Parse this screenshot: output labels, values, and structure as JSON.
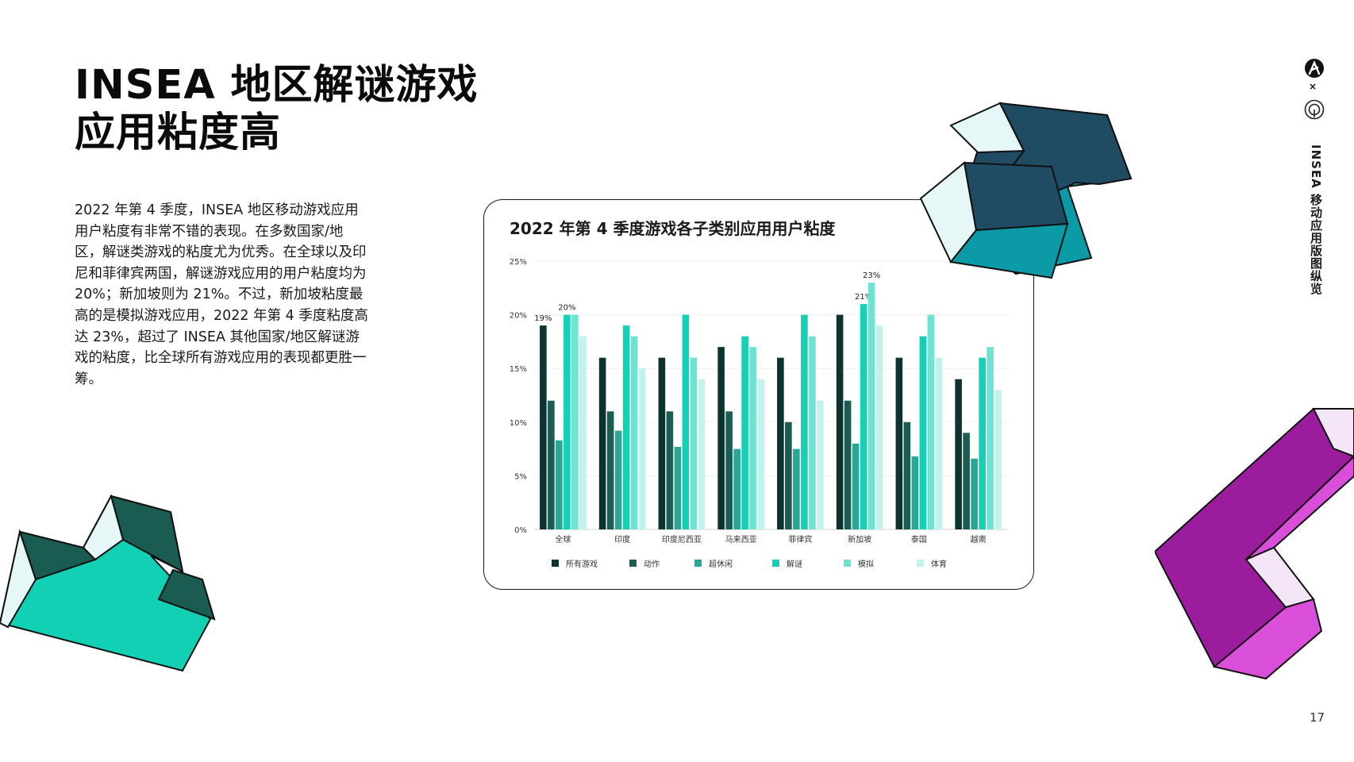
{
  "page": {
    "title_line1": "INSEA 地区解谜游戏",
    "title_line2": "应用粘度高",
    "body": "2022 年第 4 季度，INSEA 地区移动游戏应用用户粘度有非常不错的表现。在多数国家/地区，解谜类游戏的粘度尤为优秀。在全球以及印尼和菲律宾两国，解谜游戏应用的用户粘度均为 20%；新加坡则为 21%。不过，新加坡粘度最高的是模拟游戏应用，2022 年第 4 季度粘度高达 23%，超过了 INSEA 其他国家/地区解谜游戏的粘度，比全球所有游戏应用的表现都更胜一筹。",
    "side_label": "INSEA 移动应用版图纵览",
    "logo_separator": "×",
    "page_number": "17"
  },
  "chart_data": {
    "type": "bar",
    "title": "2022 年第 4 季度游戏各子类别应用用户粘度",
    "categories": [
      "全球",
      "印度",
      "印度尼西亚",
      "马来西亚",
      "菲律宾",
      "新加坡",
      "泰国",
      "越南"
    ],
    "series": [
      {
        "name": "所有游戏",
        "color": "#0c3330",
        "values": [
          19,
          16,
          16,
          17,
          16,
          20,
          16,
          14
        ]
      },
      {
        "name": "动作",
        "color": "#1b5c53",
        "values": [
          12,
          11,
          11,
          11,
          10,
          12,
          10,
          9
        ]
      },
      {
        "name": "超休闲",
        "color": "#2aa697",
        "values": [
          8.3,
          9.2,
          7.7,
          7.5,
          7.5,
          8,
          6.8,
          6.6
        ]
      },
      {
        "name": "解谜",
        "color": "#14d0b4",
        "values": [
          20,
          19,
          20,
          18,
          20,
          21,
          18,
          16
        ]
      },
      {
        "name": "模拟",
        "color": "#6fe3d1",
        "values": [
          20,
          18,
          16,
          17,
          18,
          23,
          20,
          17
        ]
      },
      {
        "name": "体育",
        "color": "#c2f3ea",
        "values": [
          18,
          15,
          14,
          14,
          12,
          19,
          16,
          13
        ]
      }
    ],
    "y_ticks": [
      "0%",
      "5%",
      "10%",
      "15%",
      "20%",
      "25%"
    ],
    "ylim": [
      0,
      25
    ],
    "grid": true,
    "legend_position": "bottom",
    "data_labels": [
      {
        "category": "全球",
        "series": "所有游戏",
        "text": "19%"
      },
      {
        "category": "全球",
        "series": "解谜",
        "text": "20%"
      },
      {
        "category": "新加坡",
        "series": "解谜",
        "text": "21%"
      },
      {
        "category": "新加坡",
        "series": "模拟",
        "text": "23%"
      }
    ]
  }
}
